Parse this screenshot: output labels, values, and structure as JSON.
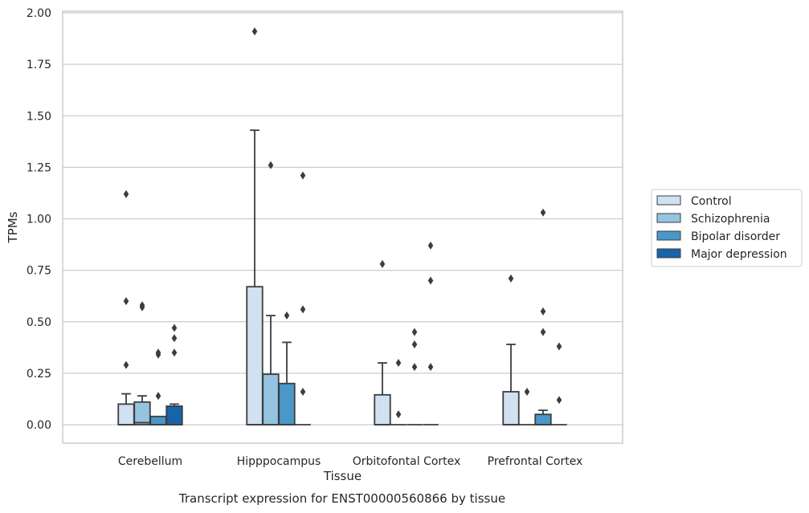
{
  "chart_data": {
    "type": "box",
    "title": "",
    "caption": "Transcript expression for ENST00000560866 by tissue",
    "xlabel": "Tissue",
    "ylabel": "TPMs",
    "ylim": [
      -0.09,
      2.01
    ],
    "yticks": [
      "0.00",
      "0.25",
      "0.50",
      "0.75",
      "1.00",
      "1.25",
      "1.50",
      "1.75",
      "2.00"
    ],
    "ytick_values": [
      0,
      0.25,
      0.5,
      0.75,
      1.0,
      1.25,
      1.5,
      1.75,
      2.0
    ],
    "grid": "horizontal",
    "legend_position": "right",
    "categories": [
      "Cerebellum",
      "Hipppocampus",
      "Orbitofontal Cortex",
      "Prefrontal Cortex"
    ],
    "series": [
      {
        "name": "Control",
        "color": "#d0e1f2",
        "boxes": [
          {
            "q1": 0,
            "median": 0,
            "q3": 0.1,
            "whisker_low": 0,
            "whisker_high": 0.15,
            "outliers": [
              1.12,
              0.6,
              0.29
            ]
          },
          {
            "q1": 0,
            "median": 0,
            "q3": 0.67,
            "whisker_low": 0,
            "whisker_high": 1.43,
            "outliers": [
              1.91
            ]
          },
          {
            "q1": 0,
            "median": 0,
            "q3": 0.145,
            "whisker_low": 0,
            "whisker_high": 0.3,
            "outliers": [
              0.78
            ]
          },
          {
            "q1": 0,
            "median": 0,
            "q3": 0.16,
            "whisker_low": 0,
            "whisker_high": 0.39,
            "outliers": [
              0.71
            ]
          }
        ]
      },
      {
        "name": "Schizophrenia",
        "color": "#94c4df",
        "boxes": [
          {
            "q1": 0,
            "median": 0.01,
            "q3": 0.11,
            "whisker_low": 0,
            "whisker_high": 0.14,
            "outliers": [
              0.58,
              0.57
            ]
          },
          {
            "q1": 0,
            "median": 0,
            "q3": 0.245,
            "whisker_low": 0,
            "whisker_high": 0.53,
            "outliers": [
              1.26
            ]
          },
          {
            "q1": 0,
            "median": 0,
            "q3": 0,
            "whisker_low": 0,
            "whisker_high": 0,
            "outliers": [
              0.3,
              0.05
            ]
          },
          {
            "q1": 0,
            "median": 0,
            "q3": 0,
            "whisker_low": 0,
            "whisker_high": 0,
            "outliers": [
              0.16
            ]
          }
        ]
      },
      {
        "name": "Bipolar disorder",
        "color": "#4a98c9",
        "boxes": [
          {
            "q1": 0,
            "median": 0,
            "q3": 0.04,
            "whisker_low": 0,
            "whisker_high": 0.04,
            "outliers": [
              0.35,
              0.34,
              0.14
            ]
          },
          {
            "q1": 0,
            "median": 0,
            "q3": 0.2,
            "whisker_low": 0,
            "whisker_high": 0.4,
            "outliers": [
              0.53
            ]
          },
          {
            "q1": 0,
            "median": 0,
            "q3": 0,
            "whisker_low": 0,
            "whisker_high": 0,
            "outliers": [
              0.45,
              0.39,
              0.28
            ]
          },
          {
            "q1": 0,
            "median": 0,
            "q3": 0.05,
            "whisker_low": 0,
            "whisker_high": 0.07,
            "outliers": [
              1.03,
              0.55,
              0.45
            ]
          }
        ]
      },
      {
        "name": "Major depression",
        "color": "#1764ab",
        "boxes": [
          {
            "q1": 0,
            "median": 0,
            "q3": 0.09,
            "whisker_low": 0,
            "whisker_high": 0.1,
            "outliers": [
              0.47,
              0.42,
              0.35
            ]
          },
          {
            "q1": 0,
            "median": 0,
            "q3": 0,
            "whisker_low": 0,
            "whisker_high": 0,
            "outliers": [
              1.21,
              0.56,
              0.16
            ]
          },
          {
            "q1": 0,
            "median": 0,
            "q3": 0,
            "whisker_low": 0,
            "whisker_high": 0,
            "outliers": [
              0.87,
              0.7,
              0.28
            ]
          },
          {
            "q1": 0,
            "median": 0,
            "q3": 0,
            "whisker_low": 0,
            "whisker_high": 0,
            "outliers": [
              0.38,
              0.12
            ]
          }
        ]
      }
    ]
  }
}
